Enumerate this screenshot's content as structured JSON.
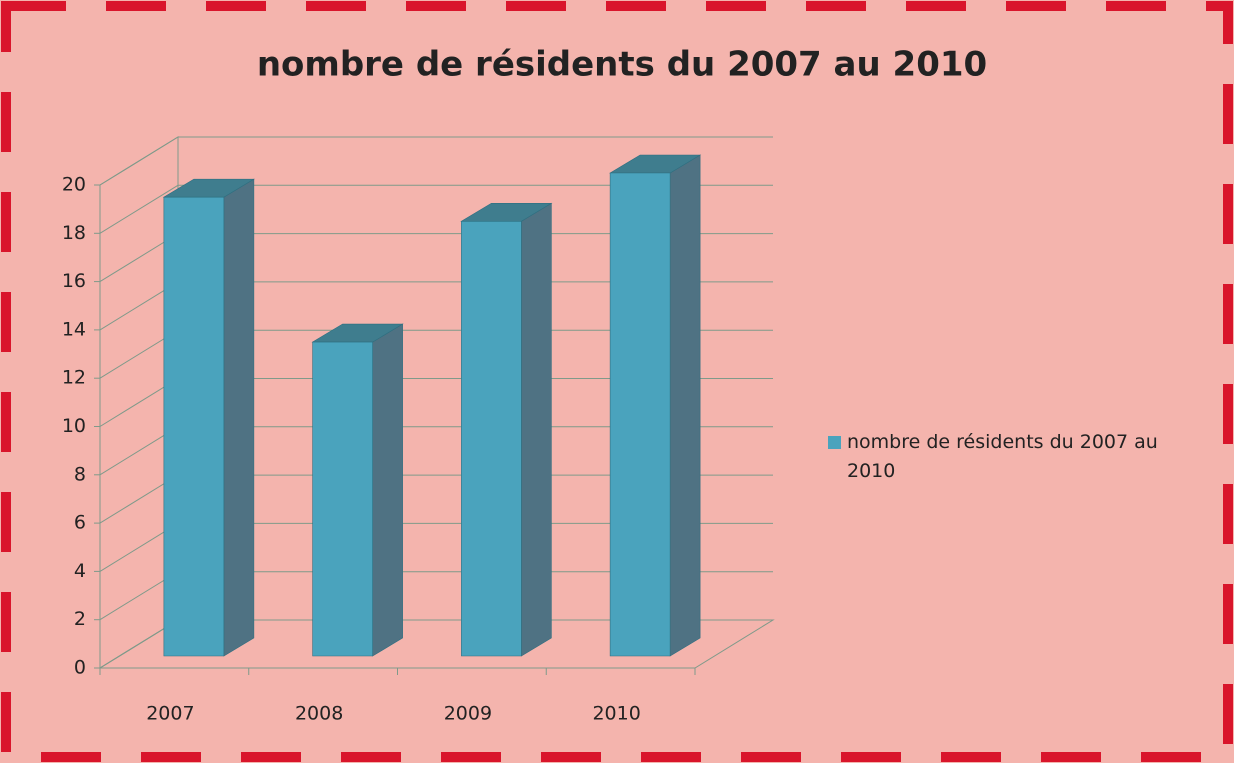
{
  "chart_data": {
    "type": "bar",
    "title": "nombre de résidents du 2007 au 2010",
    "categories": [
      "2007",
      "2008",
      "2009",
      "2010"
    ],
    "series": [
      {
        "name": "nombre de résidents du 2007 au 2010",
        "color": "#4aa3bd",
        "values": [
          19,
          13,
          18,
          20
        ]
      }
    ],
    "ylim": [
      0,
      20
    ],
    "yticks": [
      0,
      2,
      4,
      6,
      8,
      10,
      12,
      14,
      16,
      18,
      20
    ],
    "grid": true,
    "legend": "right"
  }
}
